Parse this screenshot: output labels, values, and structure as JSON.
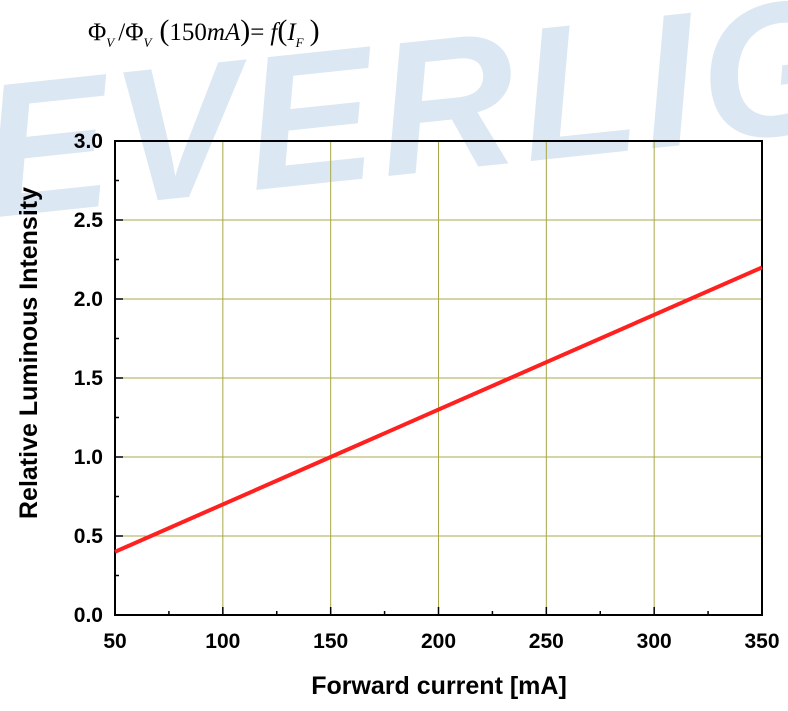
{
  "watermark_text": "EVERLIGHT",
  "formula": {
    "phi": "Φ",
    "sub_v": "V",
    "slash": "/",
    "ref_open": "(",
    "ref_value": "150",
    "ref_unit": "mA",
    "ref_close": ")",
    "eq": "=",
    "func": "f",
    "arg_open": "(",
    "arg": "I",
    "sub_f": "F",
    "arg_close": ")"
  },
  "colors": {
    "grid": "#a8a84a",
    "line": "#ff2020",
    "axis": "#000000",
    "watermark": "#dbe7f2"
  },
  "chart_data": {
    "type": "line",
    "title": "",
    "xlabel": "Forward current [mA]",
    "ylabel": "Relative Luminous Intensity",
    "xlim": [
      50,
      350
    ],
    "ylim": [
      0.0,
      3.0
    ],
    "x_ticks": [
      50,
      100,
      150,
      200,
      250,
      300,
      350
    ],
    "x_tick_labels": [
      "50",
      "100",
      "150",
      "200",
      "250",
      "300",
      "350"
    ],
    "y_ticks": [
      0.0,
      0.5,
      1.0,
      1.5,
      2.0,
      2.5,
      3.0
    ],
    "y_tick_labels": [
      "0.0",
      "0.5",
      "1.0",
      "1.5",
      "2.0",
      "2.5",
      "3.0"
    ],
    "grid": true,
    "series": [
      {
        "x": [
          50,
          100,
          150,
          200,
          250,
          300,
          350
        ],
        "y": [
          0.4,
          0.7,
          1.0,
          1.3,
          1.6,
          1.9,
          2.2
        ]
      }
    ]
  }
}
